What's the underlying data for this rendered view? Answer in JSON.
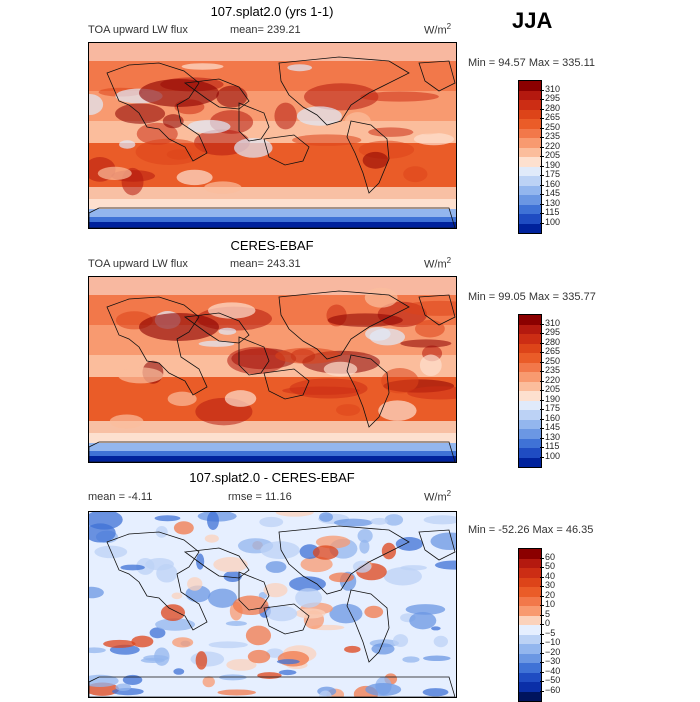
{
  "season": "JJA",
  "panels": [
    {
      "title": "107.splat2.0 (yrs 1-1)",
      "field_label": "TOA upward LW flux",
      "stat1": "mean=  239.21",
      "stat2": "",
      "units_base": "W/m",
      "units_exp": "2",
      "range": "Min =   94.57 Max = 335.11",
      "kind": "abs"
    },
    {
      "title": "CERES-EBAF",
      "field_label": "TOA upward LW flux",
      "stat1": "mean=  243.31",
      "stat2": "",
      "units_base": "W/m",
      "units_exp": "2",
      "range": "Min =   99.05 Max = 335.77",
      "kind": "abs"
    },
    {
      "title": "107.splat2.0 - CERES-EBAF",
      "field_label": "mean =   -4.11",
      "stat1": "rmse =   11.16",
      "stat2": "",
      "units_base": "W/m",
      "units_exp": "2",
      "range": "Min = -52.26 Max =  46.35",
      "kind": "diff"
    }
  ],
  "colorbars": {
    "abs": {
      "labels": [
        "310",
        "295",
        "280",
        "265",
        "250",
        "235",
        "220",
        "205",
        "190",
        "175",
        "160",
        "145",
        "130",
        "115",
        "100"
      ],
      "colors": [
        "#8b0000",
        "#b4190f",
        "#cc2d14",
        "#dd4419",
        "#ea5c28",
        "#f2784a",
        "#f89a70",
        "#fbbd9c",
        "#fde0cf",
        "#e0eafa",
        "#bcd2f5",
        "#93b6ee",
        "#6b97e3",
        "#3f72d6",
        "#1f4cc2",
        "#00229c"
      ]
    },
    "diff": {
      "labels": [
        "60",
        "50",
        "40",
        "30",
        "20",
        "10",
        "5",
        "0",
        "−5",
        "−10",
        "−20",
        "−30",
        "−40",
        "−50",
        "−60"
      ],
      "colors": [
        "#8b0000",
        "#b4190f",
        "#cc2d14",
        "#dd4419",
        "#ea5c28",
        "#f2784a",
        "#f89a70",
        "#fbd2bc",
        "#e6efff",
        "#bcd2f5",
        "#93b6ee",
        "#6b97e3",
        "#3f72d6",
        "#1f4cc2",
        "#0a2fa8",
        "#00145e"
      ]
    }
  },
  "chart_data": [
    {
      "type": "heatmap",
      "title": "107.splat2.0 (yrs 1-1)",
      "variable": "TOA upward LW flux",
      "units": "W/m2",
      "mean": 239.21,
      "min": 94.57,
      "max": 335.11,
      "levels": [
        100,
        115,
        130,
        145,
        160,
        175,
        190,
        205,
        220,
        235,
        250,
        265,
        280,
        295,
        310
      ]
    },
    {
      "type": "heatmap",
      "title": "CERES-EBAF",
      "variable": "TOA upward LW flux",
      "units": "W/m2",
      "mean": 243.31,
      "min": 99.05,
      "max": 335.77,
      "levels": [
        100,
        115,
        130,
        145,
        160,
        175,
        190,
        205,
        220,
        235,
        250,
        265,
        280,
        295,
        310
      ]
    },
    {
      "type": "heatmap",
      "title": "107.splat2.0 - CERES-EBAF",
      "units": "W/m2",
      "mean": -4.11,
      "rmse": 11.16,
      "min": -52.26,
      "max": 46.35,
      "levels": [
        -60,
        -50,
        -40,
        -30,
        -20,
        -10,
        -5,
        0,
        5,
        10,
        20,
        30,
        40,
        50,
        60
      ]
    }
  ]
}
